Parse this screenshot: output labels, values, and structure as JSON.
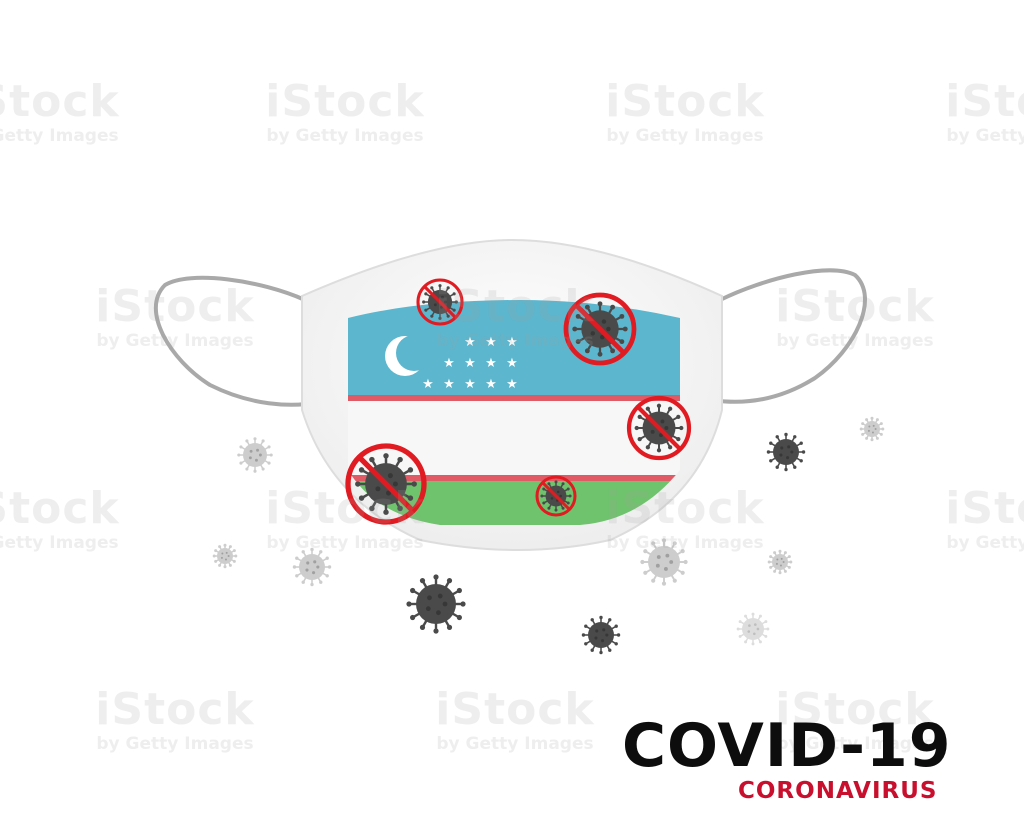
{
  "headline": "COVID-19",
  "subheadline": "CORONAVIRUS",
  "watermark": {
    "brand": "iStock",
    "credit": "by Getty Images"
  },
  "colors": {
    "flag_blue": "#5bb6ce",
    "flag_white": "#f7f7f7",
    "flag_green": "#6fc36d",
    "flag_red_stripe": "#e05a66",
    "prohibition_red": "#e11b22",
    "virus_dark": "#4a4a4a",
    "virus_gray": "#9a9a9a",
    "virus_light": "#c8c8c8",
    "headline": "#0d0d0d",
    "subheadline": "#c8102e"
  },
  "icons": [
    "face-mask-icon",
    "uzbekistan-flag-icon",
    "crescent-icon",
    "star-icon",
    "virus-icon",
    "prohibition-sign-icon"
  ]
}
